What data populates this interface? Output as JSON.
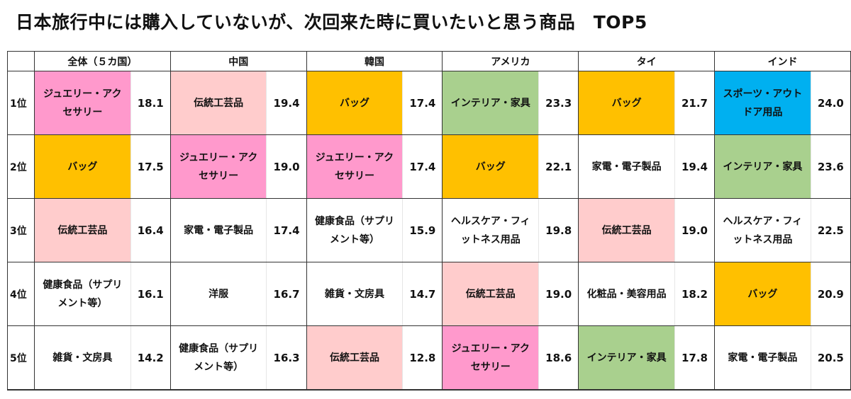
{
  "title": "日本旅行中には購入していないが、次回来た時に買いたいと思う商品　TOP5",
  "colors": {
    "ジュエリー・アクセサリー": "#ff99cc",
    "バッグ": "#ffc000",
    "伝統工芸品": "#ffcccc",
    "インテリア・家具": "#a9d08e",
    "スポーツ・アウトドア用品": "#00b0f0",
    "default": "#ffffff"
  },
  "table": {
    "headers": [
      "",
      "全体（５カ国）",
      "中国",
      "韓国",
      "アメリカ",
      "タイ",
      "インド"
    ],
    "ranks": [
      "1位",
      "2位",
      "3位",
      "4位",
      "5位"
    ],
    "rows": [
      [
        {
          "item": "ジュエリー・アクセサリー",
          "value": "18.1"
        },
        {
          "item": "伝統工芸品",
          "value": "19.4"
        },
        {
          "item": "バッグ",
          "value": "17.4"
        },
        {
          "item": "インテリア・家具",
          "value": "23.3"
        },
        {
          "item": "バッグ",
          "value": "21.7"
        },
        {
          "item": "スポーツ・アウトドア用品",
          "value": "24.0"
        }
      ],
      [
        {
          "item": "バッグ",
          "value": "17.5"
        },
        {
          "item": "ジュエリー・アクセサリー",
          "value": "19.0"
        },
        {
          "item": "ジュエリー・アクセサリー",
          "value": "17.4"
        },
        {
          "item": "バッグ",
          "value": "22.1"
        },
        {
          "item": "家電・電子製品",
          "value": "19.4"
        },
        {
          "item": "インテリア・家具",
          "value": "23.6"
        }
      ],
      [
        {
          "item": "伝統工芸品",
          "value": "16.4"
        },
        {
          "item": "家電・電子製品",
          "value": "17.4"
        },
        {
          "item": "健康食品（サプリメント等）",
          "value": "15.9"
        },
        {
          "item": "ヘルスケア・フィットネス用品",
          "value": "19.8"
        },
        {
          "item": "伝統工芸品",
          "value": "19.0"
        },
        {
          "item": "ヘルスケア・フィットネス用品",
          "value": "22.5"
        }
      ],
      [
        {
          "item": "健康食品（サプリメント等）",
          "value": "16.1"
        },
        {
          "item": "洋服",
          "value": "16.7"
        },
        {
          "item": "雑貨・文房具",
          "value": "14.7"
        },
        {
          "item": "伝統工芸品",
          "value": "19.0"
        },
        {
          "item": "化粧品・美容用品",
          "value": "18.2"
        },
        {
          "item": "バッグ",
          "value": "20.9"
        }
      ],
      [
        {
          "item": "雑貨・文房具",
          "value": "14.2"
        },
        {
          "item": "健康食品（サプリメント等）",
          "value": "16.3"
        },
        {
          "item": "伝統工芸品",
          "value": "12.8"
        },
        {
          "item": "ジュエリー・アクセサリー",
          "value": "18.6"
        },
        {
          "item": "インテリア・家具",
          "value": "17.8"
        },
        {
          "item": "家電・電子製品",
          "value": "20.5"
        }
      ]
    ]
  },
  "chart_data": {
    "type": "table",
    "title": "日本旅行中には購入していないが、次回来た時に買いたいと思う商品　TOP5",
    "columns": [
      "全体（５カ国）",
      "中国",
      "韓国",
      "アメリカ",
      "タイ",
      "インド"
    ],
    "rows": [
      "1位",
      "2位",
      "3位",
      "4位",
      "5位"
    ],
    "series": [
      {
        "name": "全体（５カ国）",
        "items": [
          "ジュエリー・アクセサリー",
          "バッグ",
          "伝統工芸品",
          "健康食品（サプリメント等）",
          "雑貨・文房具"
        ],
        "values": [
          18.1,
          17.5,
          16.4,
          16.1,
          14.2
        ]
      },
      {
        "name": "中国",
        "items": [
          "伝統工芸品",
          "ジュエリー・アクセサリー",
          "家電・電子製品",
          "洋服",
          "健康食品（サプリメント等）"
        ],
        "values": [
          19.4,
          19.0,
          17.4,
          16.7,
          16.3
        ]
      },
      {
        "name": "韓国",
        "items": [
          "バッグ",
          "ジュエリー・アクセサリー",
          "健康食品（サプリメント等）",
          "雑貨・文房具",
          "伝統工芸品"
        ],
        "values": [
          17.4,
          17.4,
          15.9,
          14.7,
          12.8
        ]
      },
      {
        "name": "アメリカ",
        "items": [
          "インテリア・家具",
          "バッグ",
          "ヘルスケア・フィットネス用品",
          "伝統工芸品",
          "ジュエリー・アクセサリー"
        ],
        "values": [
          23.3,
          22.1,
          19.8,
          19.0,
          18.6
        ]
      },
      {
        "name": "タイ",
        "items": [
          "バッグ",
          "家電・電子製品",
          "伝統工芸品",
          "化粧品・美容用品",
          "インテリア・家具"
        ],
        "values": [
          21.7,
          19.4,
          19.0,
          18.2,
          17.8
        ]
      },
      {
        "name": "インド",
        "items": [
          "スポーツ・アウトドア用品",
          "インテリア・家具",
          "ヘルスケア・フィットネス用品",
          "バッグ",
          "家電・電子製品"
        ],
        "values": [
          24.0,
          23.6,
          22.5,
          20.9,
          20.5
        ]
      }
    ]
  }
}
